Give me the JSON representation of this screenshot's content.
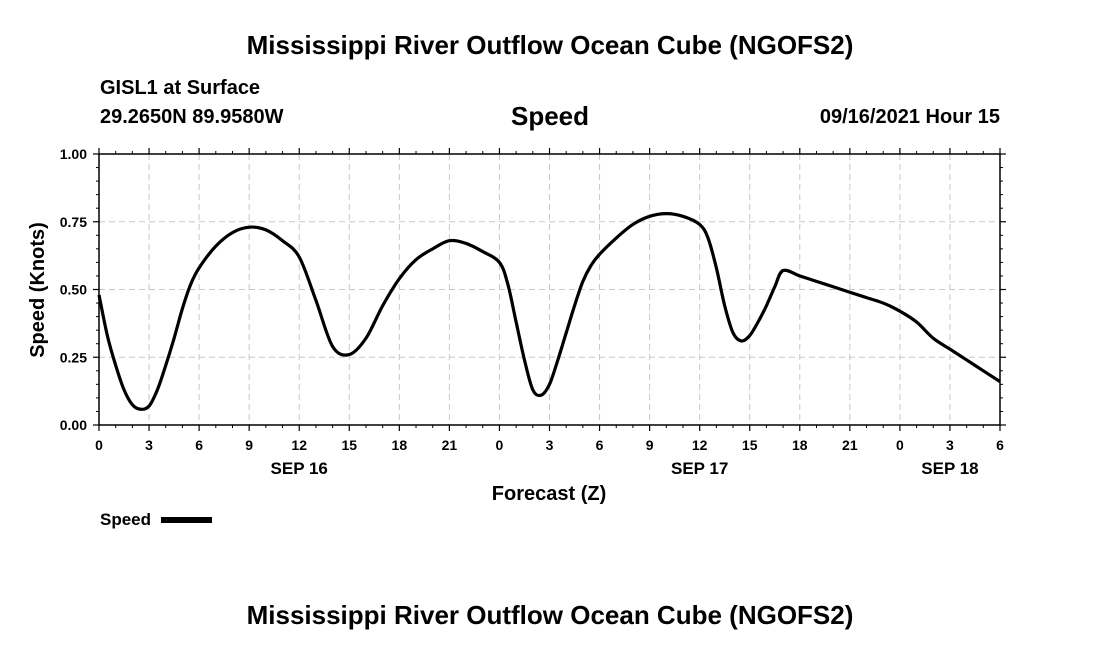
{
  "header": {
    "title_top": "Mississippi River Outflow Ocean Cube (NGOFS2)",
    "station": "GISL1 at Surface",
    "coords": "29.2650N  89.9580W",
    "plot_name": "Speed",
    "datetime": "09/16/2021 Hour 15",
    "title_bottom": "Mississippi River Outflow Ocean Cube (NGOFS2)"
  },
  "legend": {
    "label": "Speed",
    "color": "#000000"
  },
  "chart_data": {
    "type": "line",
    "title": "Speed",
    "xlabel": "Forecast (Z)",
    "ylabel": "Speed (Knots)",
    "xlim": [
      0,
      54
    ],
    "ylim": [
      0,
      1
    ],
    "grid": true,
    "y_ticks": [
      "0.00",
      "0.25",
      "0.50",
      "0.75",
      "1.00"
    ],
    "x_ticks": [
      "0",
      "3",
      "6",
      "9",
      "12",
      "15",
      "18",
      "21",
      "0",
      "3",
      "6",
      "9",
      "12",
      "15",
      "18",
      "21",
      "0",
      "3",
      "6"
    ],
    "date_labels": [
      {
        "text": "SEP 16",
        "hour": 12
      },
      {
        "text": "SEP 17",
        "hour": 36
      },
      {
        "text": "SEP 18",
        "hour": 51
      }
    ],
    "series": [
      {
        "name": "Speed",
        "x": [
          0,
          0.5,
          1,
          1.5,
          2,
          2.5,
          3,
          3.5,
          4,
          4.5,
          5,
          5.5,
          6,
          7,
          8,
          9,
          10,
          11,
          12,
          13,
          14,
          15,
          16,
          17,
          18,
          19,
          20,
          21,
          22,
          23,
          24,
          24.5,
          25,
          25.5,
          26,
          26.5,
          27,
          27.5,
          28,
          28.5,
          29,
          29.5,
          30,
          31,
          32,
          33,
          34,
          35,
          36,
          36.5,
          37,
          37.5,
          38,
          38.5,
          39,
          39.5,
          40,
          40.5,
          41,
          42,
          43,
          44,
          45,
          46,
          47,
          48,
          49,
          50,
          51,
          52,
          53,
          54
        ],
        "y": [
          0.48,
          0.33,
          0.22,
          0.13,
          0.075,
          0.058,
          0.07,
          0.13,
          0.22,
          0.32,
          0.43,
          0.52,
          0.58,
          0.66,
          0.71,
          0.73,
          0.72,
          0.68,
          0.62,
          0.46,
          0.29,
          0.26,
          0.32,
          0.44,
          0.54,
          0.61,
          0.65,
          0.68,
          0.67,
          0.64,
          0.6,
          0.52,
          0.38,
          0.24,
          0.13,
          0.11,
          0.15,
          0.24,
          0.34,
          0.44,
          0.53,
          0.59,
          0.63,
          0.69,
          0.74,
          0.77,
          0.78,
          0.77,
          0.74,
          0.69,
          0.58,
          0.44,
          0.34,
          0.31,
          0.33,
          0.38,
          0.44,
          0.51,
          0.57,
          0.55,
          0.53,
          0.51,
          0.49,
          0.47,
          0.45,
          0.42,
          0.38,
          0.32,
          0.28,
          0.24,
          0.2,
          0.16
        ]
      }
    ]
  }
}
